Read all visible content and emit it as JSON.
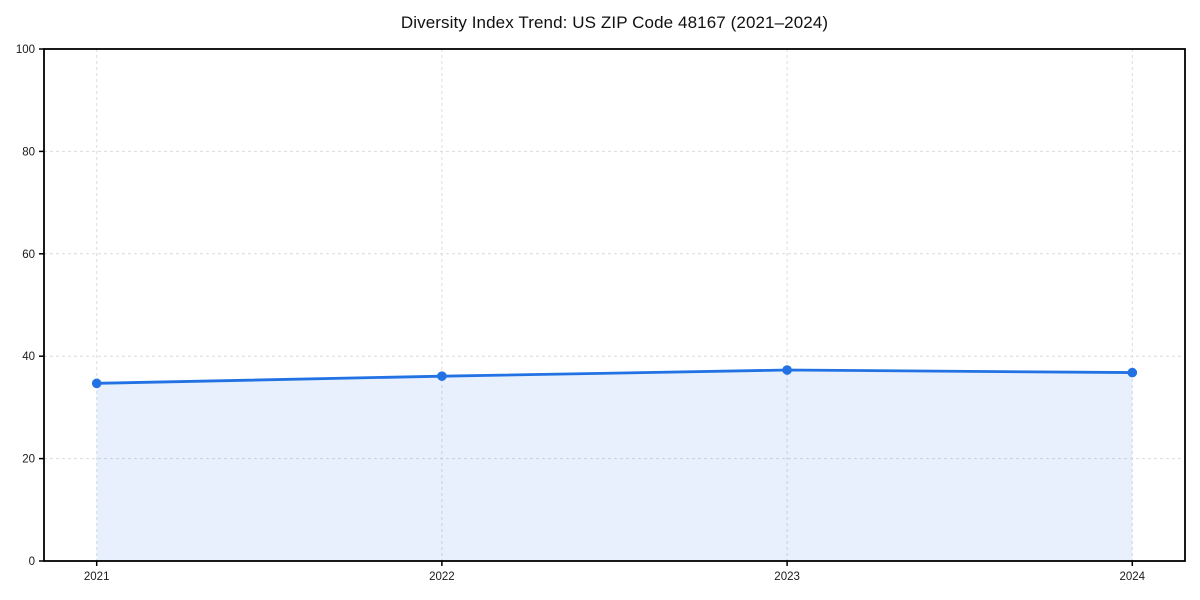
{
  "chart_data": {
    "type": "area",
    "title": "Diversity Index Trend: US ZIP Code 48167 (2021–2024)",
    "x": [
      2021,
      2022,
      2023,
      2024
    ],
    "series": [
      {
        "name": "Diversity Index",
        "values": [
          34.7,
          36.1,
          37.3,
          36.8
        ]
      }
    ],
    "xlabel": "",
    "ylabel": "",
    "ylim": [
      0,
      100
    ],
    "yticks": [
      0,
      20,
      40,
      60,
      80,
      100
    ],
    "grid": true,
    "grid_style": "dashed",
    "legend": false,
    "colors": {
      "line": "#2272e4",
      "marker": "#2272e4",
      "fill": "rgba(34,114,228,0.11)",
      "grid": "#dcdcdc",
      "axis": "#000000",
      "tick_text": "#1a1a1a",
      "background": "#ffffff"
    }
  }
}
